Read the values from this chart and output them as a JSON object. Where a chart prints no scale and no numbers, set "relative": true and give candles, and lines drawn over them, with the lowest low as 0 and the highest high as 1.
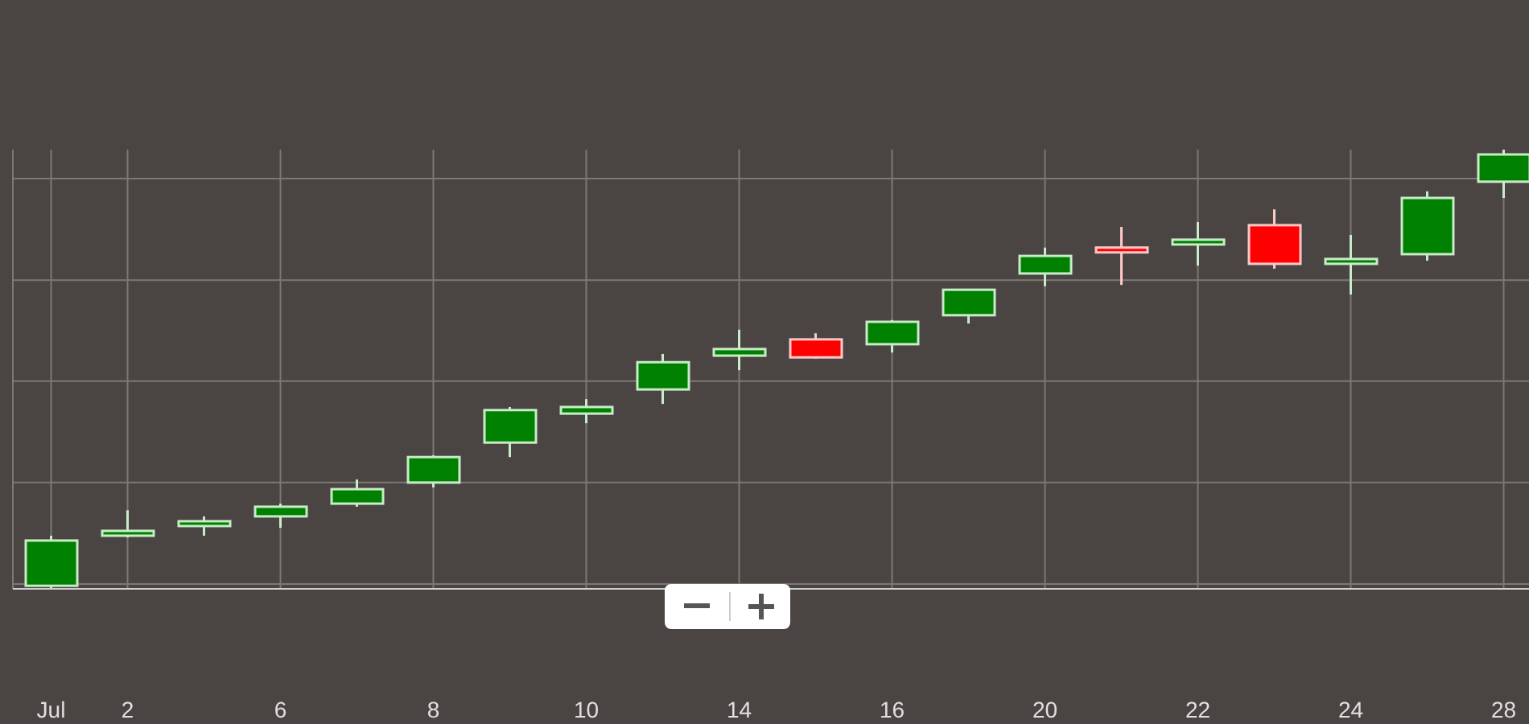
{
  "chart_data": {
    "type": "candlestick",
    "relative": true,
    "grid": true,
    "categories": [
      "Jul",
      "2",
      null,
      "6",
      null,
      "8",
      null,
      "10",
      null,
      "14",
      null,
      "16",
      null,
      "20",
      null,
      "22",
      null,
      "24",
      null,
      "28"
    ],
    "ohlc": [
      [
        0.007,
        0.121,
        0,
        0.11
      ],
      [
        0.121,
        0.179,
        0.117,
        0.132
      ],
      [
        0.143,
        0.165,
        0.121,
        0.154
      ],
      [
        0.165,
        0.194,
        0.139,
        0.187
      ],
      [
        0.194,
        0.249,
        0.187,
        0.227
      ],
      [
        0.242,
        0.304,
        0.231,
        0.3
      ],
      [
        0.333,
        0.414,
        0.3,
        0.407
      ],
      [
        0.399,
        0.432,
        0.377,
        0.414
      ],
      [
        0.454,
        0.535,
        0.421,
        0.516
      ],
      [
        0.531,
        0.59,
        0.498,
        0.546
      ],
      [
        0.568,
        0.582,
        0.524,
        0.527
      ],
      [
        0.557,
        0.612,
        0.538,
        0.608
      ],
      [
        0.623,
        0.681,
        0.604,
        0.681
      ],
      [
        0.718,
        0.777,
        0.689,
        0.758
      ],
      [
        0.777,
        0.824,
        0.692,
        0.766
      ],
      [
        0.784,
        0.835,
        0.736,
        0.795
      ],
      [
        0.828,
        0.864,
        0.729,
        0.74
      ],
      [
        0.74,
        0.806,
        0.67,
        0.751
      ],
      [
        0.762,
        0.905,
        0.747,
        0.89
      ],
      [
        0.927,
        1,
        0.89,
        0.989
      ]
    ],
    "colors": [
      "#008000",
      "#008000",
      "#008000",
      "#008000",
      "#008000",
      "#008000",
      "#008000",
      "#008000",
      "#008000",
      "#008000",
      "#ff0000",
      "#008000",
      "#008000",
      "#008000",
      "#ff0000",
      "#008000",
      "#ff0000",
      "#008000",
      "#008000",
      "#008000"
    ]
  }
}
